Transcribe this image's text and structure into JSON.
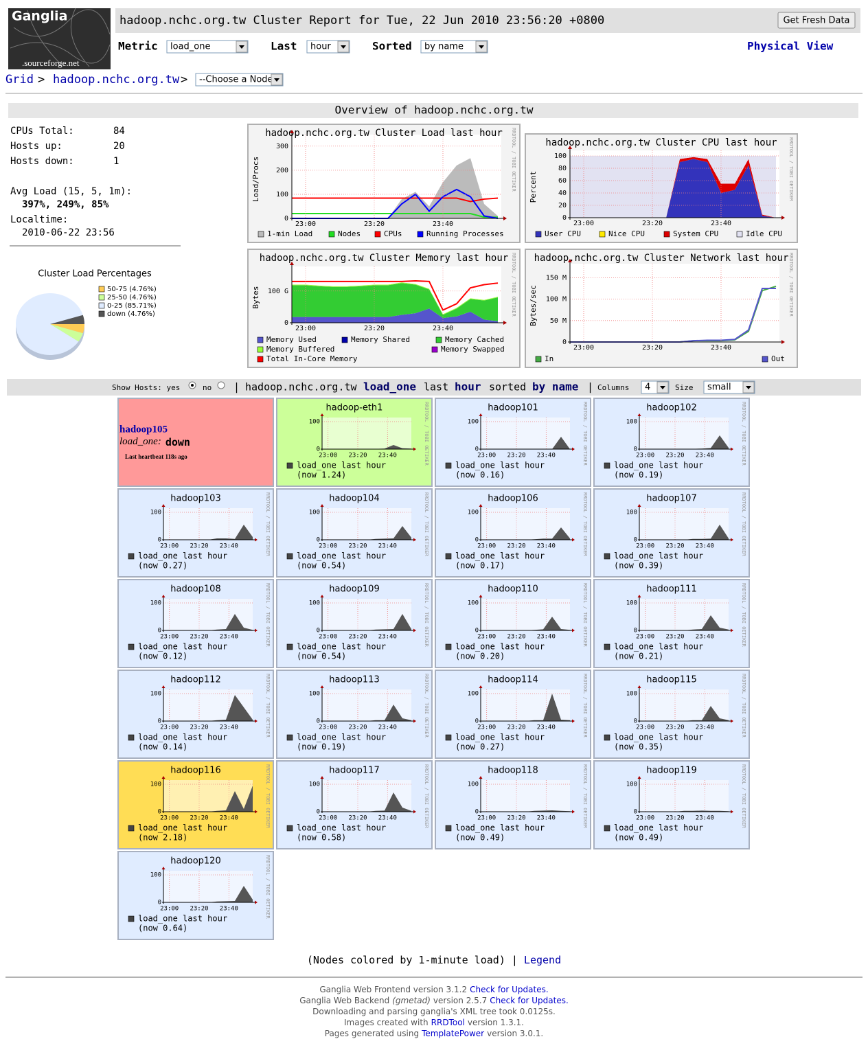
{
  "header": {
    "logo": "Ganglia",
    "logo_sub": ".sourceforge.net",
    "title": "hadoop.nchc.org.tw Cluster Report for Tue, 22 Jun 2010 23:56:20 +0800",
    "refresh": "Get Fresh Data",
    "metric_label": "Metric",
    "metric": "load_one",
    "last_label": "Last",
    "last": "hour",
    "sorted_label": "Sorted",
    "sorted": "by name",
    "physical_view": "Physical View"
  },
  "breadcrumb": {
    "grid": "Grid",
    "sep1": ">",
    "cluster": "hadoop.nchc.org.tw",
    "sep2": ">",
    "node_select": "--Choose a Node"
  },
  "overview": {
    "title": "Overview of hadoop.nchc.org.tw",
    "stats": [
      [
        "CPUs Total:",
        "84"
      ],
      [
        "Hosts up:",
        "20"
      ],
      [
        "Hosts down:",
        "1"
      ]
    ],
    "avg_load_label": "Avg Load (15, 5, 1m):",
    "avg_load": "397%, 249%, 85%",
    "localtime_label": "Localtime:",
    "localtime": "2010-06-22 23:56"
  },
  "pie": {
    "type": "pie",
    "title": "Cluster Load Percentages",
    "values": [
      4.76,
      4.76,
      85.71,
      4.76
    ],
    "value_labels": [
      "50-75 (4.76%)",
      "25-50 (4.76%)",
      "0-25 (85.71%)",
      "down (4.76%)"
    ],
    "colors": [
      "#ffcc55",
      "#ccff99",
      "#e0ecff",
      "#555555"
    ]
  },
  "rrd_credit": "RRDTOOL / TOBI OETIKER",
  "cluster_x": {
    "x": [
      -4,
      0,
      4,
      8,
      12,
      16,
      20,
      24,
      28,
      32,
      36,
      40,
      44,
      48,
      52,
      56
    ],
    "xlim": [
      -4,
      57
    ],
    "xticks": [
      {
        "value": 0,
        "label": "23:00"
      },
      {
        "value": 20,
        "label": "23:20"
      },
      {
        "value": 40,
        "label": "23:40"
      }
    ]
  },
  "graphs": [
    {
      "type": "area",
      "title": "hadoop.nchc.org.tw Cluster Load last hour",
      "ylabel": "Load/Procs",
      "ylim": [
        0,
        325
      ],
      "yticks": [
        0,
        100,
        200,
        300
      ],
      "series": [
        {
          "name": "1-min Load",
          "color": "#bbbbbb",
          "stack": true,
          "values": [
            0,
            0,
            0,
            0,
            0,
            0,
            0,
            0,
            80,
            110,
            50,
            150,
            220,
            250,
            60,
            10
          ]
        },
        {
          "name": "Nodes",
          "color": "#22dd22",
          "stack": false,
          "values": [
            20,
            20,
            20,
            20,
            20,
            20,
            20,
            20,
            20,
            20,
            20,
            20,
            20,
            20,
            5,
            5
          ]
        },
        {
          "name": "CPUs",
          "color": "#ff0000",
          "stack": false,
          "values": [
            84,
            84,
            84,
            84,
            84,
            84,
            84,
            84,
            84,
            84,
            84,
            84,
            84,
            70,
            80,
            84
          ]
        },
        {
          "name": "Running Processes",
          "color": "#0000ff",
          "stack": false,
          "values": [
            0,
            0,
            0,
            0,
            0,
            0,
            0,
            0,
            60,
            100,
            30,
            90,
            120,
            90,
            10,
            0
          ]
        }
      ]
    },
    {
      "type": "area",
      "title": "hadoop.nchc.org.tw Cluster CPU last hour",
      "ylabel": "Percent",
      "ylim": [
        0,
        100
      ],
      "yticks": [
        0,
        20,
        40,
        60,
        80,
        100
      ],
      "series": [
        {
          "name": "User CPU",
          "color": "#3333bb",
          "stack": true,
          "values": [
            0,
            0,
            0,
            0,
            0,
            0,
            0,
            0,
            90,
            95,
            90,
            40,
            45,
            85,
            3,
            0
          ]
        },
        {
          "name": "Nice CPU",
          "color": "#ffea00",
          "stack": true,
          "values": [
            0,
            0,
            0,
            0,
            0,
            0,
            0,
            0,
            0,
            0,
            0,
            0,
            0,
            0,
            0,
            0
          ]
        },
        {
          "name": "System CPU",
          "color": "#dd0000",
          "stack": true,
          "values": [
            0,
            0,
            0,
            0,
            0,
            0,
            0,
            0,
            5,
            3,
            5,
            15,
            10,
            10,
            2,
            0
          ]
        },
        {
          "name": "Idle CPU",
          "color": "#e2e2f2",
          "stack": true,
          "values": [
            100,
            100,
            100,
            100,
            100,
            100,
            100,
            100,
            5,
            2,
            5,
            45,
            45,
            5,
            95,
            100
          ]
        }
      ]
    },
    {
      "type": "area",
      "title": "hadoop.nchc.org.tw Cluster Memory last hour",
      "ylabel": "Bytes",
      "ylim": [
        0,
        160000000000
      ],
      "yticks": [
        0,
        {
          "value": 100000000000,
          "label": "100 G"
        }
      ],
      "series": [
        {
          "name": "Memory Used",
          "color": "#5555cc",
          "stack": true,
          "values": [
            18000000000,
            18000000000,
            18000000000,
            18000000000,
            18000000000,
            18000000000,
            18000000000,
            18000000000,
            25000000000,
            30000000000,
            45000000000,
            15000000000,
            20000000000,
            35000000000,
            10000000000,
            5000000000
          ]
        },
        {
          "name": "Memory Shared",
          "color": "#0000aa",
          "stack": true,
          "values": [
            0,
            0,
            0,
            0,
            0,
            0,
            0,
            0,
            0,
            0,
            0,
            0,
            0,
            0,
            0,
            0
          ]
        },
        {
          "name": "Memory Cached",
          "color": "#33cc33",
          "stack": true,
          "values": [
            100000000000,
            100000000000,
            97000000000,
            95000000000,
            95000000000,
            97000000000,
            100000000000,
            100000000000,
            100000000000,
            90000000000,
            60000000000,
            10000000000,
            25000000000,
            40000000000,
            60000000000,
            75000000000
          ]
        },
        {
          "name": "Memory Buffered",
          "color": "#99ff33",
          "stack": true,
          "values": [
            2000000000,
            2000000000,
            2000000000,
            2000000000,
            2000000000,
            2000000000,
            2000000000,
            2000000000,
            2000000000,
            2000000000,
            2000000000,
            2000000000,
            2000000000,
            2000000000,
            2000000000,
            2000000000
          ]
        },
        {
          "name": "Memory Swapped",
          "color": "#9900cc",
          "stack": true,
          "values": [
            0,
            0,
            0,
            0,
            0,
            0,
            0,
            0,
            0,
            0,
            0,
            0,
            0,
            0,
            0,
            0
          ]
        },
        {
          "name": "Total In-Core Memory",
          "color": "#ff0000",
          "stack": false,
          "values": [
            130000000000,
            130000000000,
            130000000000,
            130000000000,
            130000000000,
            130000000000,
            130000000000,
            130000000000,
            130000000000,
            132000000000,
            130000000000,
            40000000000,
            60000000000,
            110000000000,
            120000000000,
            125000000000
          ]
        }
      ]
    },
    {
      "type": "line",
      "title": "hadoop.nchc.org.tw Cluster Network last hour",
      "ylabel": "Bytes/sec",
      "ylim": [
        0,
        170000000
      ],
      "yticks": [
        0,
        {
          "value": 50000000,
          "label": "50 M"
        },
        {
          "value": 100000000,
          "label": "100 M"
        },
        {
          "value": 150000000,
          "label": "150 M"
        }
      ],
      "series": [
        {
          "name": "In",
          "color": "#44aa44",
          "stack": false,
          "values": [
            0,
            0,
            0,
            0,
            0,
            0,
            0,
            0,
            0,
            3000000,
            3000000,
            3000000,
            5000000,
            25000000,
            120000000,
            130000000
          ]
        },
        {
          "name": "Out",
          "color": "#5555cc",
          "stack": false,
          "values": [
            0,
            0,
            0,
            0,
            0,
            0,
            0,
            0,
            0,
            3000000,
            4000000,
            4000000,
            6000000,
            28000000,
            125000000,
            125000000
          ]
        }
      ]
    }
  ],
  "show_hosts": {
    "label": "Show Hosts: yes",
    "no": "no",
    "sep1": "|",
    "cluster": "hadoop.nchc.org.tw",
    "metric": "load_one",
    "last": "last",
    "range": "hour",
    "sorted": "sorted",
    "order": "by name",
    "sep2": "|",
    "columns_label": "Columns",
    "columns": "4",
    "size_label": "Size",
    "size": "small"
  },
  "host_graph": {
    "legend": "load_one last hour",
    "x": [
      -4,
      2,
      8,
      14,
      20,
      26,
      32,
      38,
      44,
      50,
      56
    ],
    "xlim": [
      -4,
      56
    ],
    "ylim": [
      0,
      100
    ],
    "yticks": [
      0,
      100
    ],
    "xticks": [
      {
        "value": 0,
        "label": "23:00"
      },
      {
        "value": 20,
        "label": "23:20"
      },
      {
        "value": 40,
        "label": "23:40"
      }
    ]
  },
  "hosts": [
    {
      "name": "hadoop105",
      "metric": "load_one:",
      "state": "down",
      "heartbeat": "Last heartbeat 118s ago",
      "color": "#ff9999"
    },
    {
      "name": "hadoop-eth1",
      "now": "(now 1.24)",
      "color": "#ccff99",
      "values": [
        0,
        0,
        0,
        0,
        0,
        0,
        1,
        2,
        15,
        3,
        2
      ]
    },
    {
      "name": "hadoop101",
      "now": "(now 0.16)",
      "color": "#e0ecff",
      "values": [
        0,
        0,
        0,
        0,
        0,
        0,
        0,
        0,
        0,
        45,
        0
      ]
    },
    {
      "name": "hadoop102",
      "now": "(now 0.19)",
      "color": "#e0ecff",
      "values": [
        0,
        0,
        0,
        0,
        0,
        0,
        1,
        2,
        4,
        50,
        5
      ]
    },
    {
      "name": "hadoop103",
      "now": "(now 0.27)",
      "color": "#e0ecff",
      "values": [
        0,
        0,
        0,
        0,
        0,
        0,
        5,
        5,
        3,
        55,
        10
      ]
    },
    {
      "name": "hadoop104",
      "now": "(now 0.54)",
      "color": "#e0ecff",
      "values": [
        0,
        0,
        0,
        0,
        0,
        0,
        3,
        4,
        5,
        50,
        8
      ]
    },
    {
      "name": "hadoop106",
      "now": "(now 0.17)",
      "color": "#e0ecff",
      "values": [
        0,
        0,
        0,
        0,
        0,
        0,
        2,
        4,
        4,
        45,
        5
      ]
    },
    {
      "name": "hadoop107",
      "now": "(now 0.39)",
      "color": "#e0ecff",
      "values": [
        0,
        0,
        0,
        0,
        0,
        0,
        3,
        3,
        4,
        55,
        5
      ]
    },
    {
      "name": "hadoop108",
      "now": "(now 0.12)",
      "color": "#e0ecff",
      "values": [
        0,
        0,
        0,
        0,
        0,
        0,
        3,
        5,
        60,
        10,
        2
      ]
    },
    {
      "name": "hadoop109",
      "now": "(now 0.54)",
      "color": "#e0ecff",
      "values": [
        0,
        0,
        0,
        0,
        0,
        0,
        3,
        4,
        5,
        60,
        5
      ]
    },
    {
      "name": "hadoop110",
      "now": "(now 0.20)",
      "color": "#e0ecff",
      "values": [
        0,
        0,
        0,
        0,
        0,
        0,
        2,
        4,
        50,
        5,
        2
      ]
    },
    {
      "name": "hadoop111",
      "now": "(now 0.21)",
      "color": "#e0ecff",
      "values": [
        0,
        0,
        0,
        0,
        0,
        0,
        3,
        5,
        55,
        10,
        3
      ]
    },
    {
      "name": "hadoop112",
      "now": "(now 0.14)",
      "color": "#e0ecff",
      "values": [
        0,
        0,
        0,
        0,
        0,
        0,
        3,
        5,
        95,
        50,
        5
      ]
    },
    {
      "name": "hadoop113",
      "now": "(now 0.19)",
      "color": "#e0ecff",
      "values": [
        0,
        0,
        0,
        0,
        0,
        0,
        3,
        3,
        60,
        10,
        3
      ]
    },
    {
      "name": "hadoop114",
      "now": "(now 0.27)",
      "color": "#e0ecff",
      "values": [
        0,
        0,
        0,
        0,
        0,
        0,
        3,
        3,
        100,
        5,
        3
      ]
    },
    {
      "name": "hadoop115",
      "now": "(now 0.35)",
      "color": "#e0ecff",
      "values": [
        0,
        0,
        0,
        0,
        0,
        0,
        3,
        3,
        55,
        10,
        3
      ]
    },
    {
      "name": "hadoop116",
      "now": "(now 2.18)",
      "color": "#ffdd55",
      "values": [
        0,
        0,
        0,
        0,
        0,
        0,
        3,
        5,
        75,
        10,
        95
      ]
    },
    {
      "name": "hadoop117",
      "now": "(now 0.58)",
      "color": "#e0ecff",
      "values": [
        0,
        0,
        0,
        0,
        0,
        0,
        3,
        4,
        70,
        15,
        3
      ]
    },
    {
      "name": "hadoop118",
      "now": "(now 0.49)",
      "color": "#e0ecff",
      "values": [
        0,
        0,
        0,
        0,
        0,
        0,
        3,
        4,
        5,
        3,
        2
      ]
    },
    {
      "name": "hadoop119",
      "now": "(now 0.49)",
      "color": "#e0ecff",
      "values": [
        0,
        0,
        0,
        0,
        0,
        3,
        3,
        4,
        3,
        3,
        2
      ]
    },
    {
      "name": "hadoop120",
      "now": "(now 0.64)",
      "color": "#e0ecff",
      "values": [
        0,
        0,
        0,
        0,
        0,
        0,
        3,
        4,
        5,
        60,
        10
      ]
    }
  ],
  "nodes_note": {
    "text": "(Nodes colored by 1-minute load) |",
    "link": "Legend"
  },
  "footer": [
    [
      {
        "text": "Ganglia Web Frontend version 3.1.2"
      },
      {
        "text": "Check for Updates.",
        "link": true
      }
    ],
    [
      {
        "text": "Ganglia Web Backend"
      },
      {
        "text": "(gmetad)",
        "italic": true
      },
      {
        "text": "version 2.5.7"
      },
      {
        "text": "Check for Updates.",
        "link": true
      }
    ],
    [
      {
        "text": "Downloading and parsing ganglia's XML tree took 0.0125s."
      }
    ],
    [
      {
        "text": "Images created with"
      },
      {
        "text": "RRDTool",
        "link": true
      },
      {
        "text": "version 1.3.1."
      }
    ],
    [
      {
        "text": "Pages generated using"
      },
      {
        "text": "TemplatePower",
        "link": true
      },
      {
        "text": "version 3.0.1."
      }
    ]
  ]
}
